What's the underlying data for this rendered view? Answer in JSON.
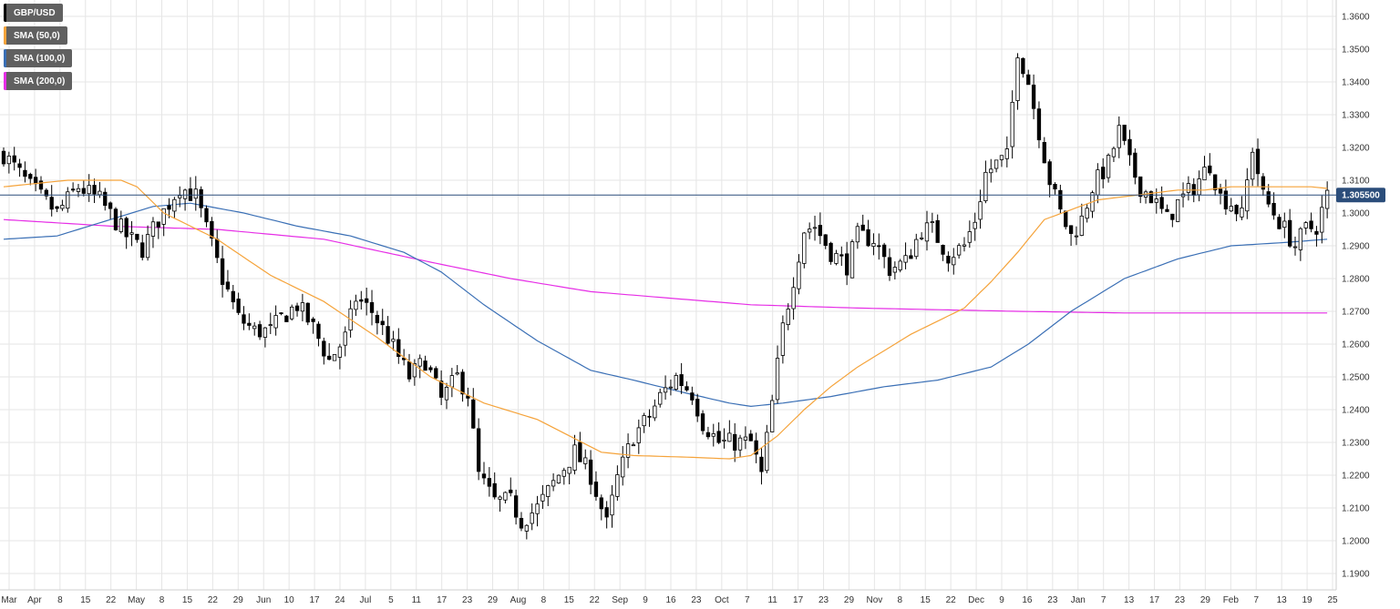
{
  "chart_data": {
    "type": "candlestick",
    "title": "GBP/USD",
    "ylim": [
      1.185,
      1.365
    ],
    "y_ticks": [
      "1.1900",
      "1.2000",
      "1.2100",
      "1.2200",
      "1.2300",
      "1.2400",
      "1.2500",
      "1.2600",
      "1.2700",
      "1.2800",
      "1.2900",
      "1.3000",
      "1.3100",
      "1.3200",
      "1.3300",
      "1.3400",
      "1.3500",
      "1.3600"
    ],
    "x_tick_labels": [
      "Mar",
      "Apr",
      "8",
      "15",
      "22",
      "May",
      "8",
      "15",
      "22",
      "29",
      "Jun",
      "10",
      "17",
      "24",
      "Jul",
      "5",
      "11",
      "17",
      "23",
      "29",
      "Aug",
      "8",
      "15",
      "22",
      "Sep",
      "9",
      "16",
      "23",
      "Oct",
      "7",
      "11",
      "17",
      "23",
      "29",
      "Nov",
      "8",
      "15",
      "22",
      "Dec",
      "9",
      "16",
      "23",
      "Jan",
      "7",
      "13",
      "17",
      "23",
      "29",
      "Feb",
      "7",
      "13",
      "19",
      "25"
    ],
    "current_price": 1.3055,
    "current_price_label": "1.305500",
    "colors": {
      "up_candle": "#ffffff",
      "down_candle": "#000000",
      "sma50": "#f5a33a",
      "sma100": "#3a6fb5",
      "sma200": "#e62ee6",
      "price_line": "#2b4d7a",
      "price_tag": "#2b4d7a",
      "grid": "#e6e6e6"
    },
    "legend": [
      {
        "name": "GBP/USD",
        "color": "#000000"
      },
      {
        "name": "SMA (50,0)",
        "color": "#f5a33a"
      },
      {
        "name": "SMA (100,0)",
        "color": "#3a6fb5"
      },
      {
        "name": "SMA (200,0)",
        "color": "#e62ee6"
      }
    ],
    "close_path": [
      [
        0,
        1.318
      ],
      [
        5,
        1.308
      ],
      [
        10,
        1.3
      ],
      [
        14,
        1.308
      ],
      [
        18,
        1.304
      ],
      [
        23,
        1.293
      ],
      [
        26,
        1.289
      ],
      [
        29,
        1.298
      ],
      [
        33,
        1.308
      ],
      [
        36,
        1.305
      ],
      [
        38,
        1.295
      ],
      [
        41,
        1.28
      ],
      [
        44,
        1.268
      ],
      [
        47,
        1.264
      ],
      [
        50,
        1.264
      ],
      [
        52,
        1.268
      ],
      [
        55,
        1.272
      ],
      [
        58,
        1.265
      ],
      [
        61,
        1.255
      ],
      [
        64,
        1.262
      ],
      [
        66,
        1.274
      ],
      [
        69,
        1.27
      ],
      [
        72,
        1.262
      ],
      [
        76,
        1.25
      ],
      [
        79,
        1.255
      ],
      [
        82,
        1.243
      ],
      [
        85,
        1.25
      ],
      [
        87,
        1.245
      ],
      [
        89,
        1.22
      ],
      [
        92,
        1.212
      ],
      [
        95,
        1.212
      ],
      [
        97,
        1.206
      ],
      [
        100,
        1.21
      ],
      [
        104,
        1.22
      ],
      [
        107,
        1.227
      ],
      [
        110,
        1.22
      ],
      [
        113,
        1.205
      ],
      [
        115,
        1.219
      ],
      [
        118,
        1.232
      ],
      [
        121,
        1.238
      ],
      [
        123,
        1.244
      ],
      [
        126,
        1.25
      ],
      [
        129,
        1.245
      ],
      [
        131,
        1.236
      ],
      [
        134,
        1.23
      ],
      [
        137,
        1.23
      ],
      [
        140,
        1.23
      ],
      [
        142,
        1.22
      ],
      [
        144,
        1.242
      ],
      [
        146,
        1.265
      ],
      [
        148,
        1.28
      ],
      [
        150,
        1.295
      ],
      [
        152,
        1.296
      ],
      [
        155,
        1.288
      ],
      [
        158,
        1.284
      ],
      [
        160,
        1.293
      ],
      [
        163,
        1.292
      ],
      [
        166,
        1.283
      ],
      [
        169,
        1.285
      ],
      [
        172,
        1.295
      ],
      [
        174,
        1.295
      ],
      [
        177,
        1.287
      ],
      [
        180,
        1.29
      ],
      [
        182,
        1.298
      ],
      [
        184,
        1.312
      ],
      [
        186,
        1.315
      ],
      [
        188,
        1.317
      ],
      [
        190,
        1.35
      ],
      [
        192,
        1.34
      ],
      [
        194,
        1.325
      ],
      [
        196,
        1.31
      ],
      [
        198,
        1.3
      ],
      [
        200,
        1.293
      ],
      [
        202,
        1.298
      ],
      [
        204,
        1.308
      ],
      [
        207,
        1.315
      ],
      [
        209,
        1.325
      ],
      [
        211,
        1.315
      ],
      [
        213,
        1.308
      ],
      [
        215,
        1.305
      ],
      [
        218,
        1.298
      ],
      [
        220,
        1.303
      ],
      [
        223,
        1.308
      ],
      [
        226,
        1.315
      ],
      [
        228,
        1.305
      ],
      [
        230,
        1.303
      ],
      [
        232,
        1.299
      ],
      [
        234,
        1.32
      ],
      [
        236,
        1.305
      ],
      [
        238,
        1.3
      ],
      [
        240,
        1.295
      ],
      [
        242,
        1.29
      ],
      [
        244,
        1.295
      ],
      [
        246,
        1.296
      ],
      [
        248,
        1.3055
      ]
    ],
    "sma50_path": [
      [
        0,
        1.308
      ],
      [
        12,
        1.31
      ],
      [
        22,
        1.31
      ],
      [
        25,
        1.308
      ],
      [
        30,
        1.3
      ],
      [
        40,
        1.292
      ],
      [
        50,
        1.281
      ],
      [
        60,
        1.273
      ],
      [
        70,
        1.262
      ],
      [
        80,
        1.25
      ],
      [
        90,
        1.242
      ],
      [
        100,
        1.237
      ],
      [
        106,
        1.232
      ],
      [
        112,
        1.227
      ],
      [
        118,
        1.226
      ],
      [
        128,
        1.2255
      ],
      [
        136,
        1.225
      ],
      [
        140,
        1.226
      ],
      [
        145,
        1.232
      ],
      [
        150,
        1.24
      ],
      [
        155,
        1.247
      ],
      [
        160,
        1.253
      ],
      [
        165,
        1.258
      ],
      [
        170,
        1.263
      ],
      [
        175,
        1.267
      ],
      [
        180,
        1.271
      ],
      [
        185,
        1.279
      ],
      [
        190,
        1.288
      ],
      [
        195,
        1.298
      ],
      [
        200,
        1.301
      ],
      [
        205,
        1.304
      ],
      [
        210,
        1.305
      ],
      [
        215,
        1.306
      ],
      [
        220,
        1.307
      ],
      [
        225,
        1.307
      ],
      [
        230,
        1.308
      ],
      [
        235,
        1.308
      ],
      [
        240,
        1.308
      ],
      [
        245,
        1.308
      ],
      [
        248,
        1.3075
      ]
    ],
    "sma100_path": [
      [
        0,
        1.292
      ],
      [
        10,
        1.293
      ],
      [
        20,
        1.298
      ],
      [
        28,
        1.302
      ],
      [
        35,
        1.303
      ],
      [
        45,
        1.3
      ],
      [
        55,
        1.296
      ],
      [
        65,
        1.293
      ],
      [
        75,
        1.288
      ],
      [
        82,
        1.282
      ],
      [
        90,
        1.272
      ],
      [
        100,
        1.261
      ],
      [
        110,
        1.252
      ],
      [
        118,
        1.249
      ],
      [
        128,
        1.245
      ],
      [
        136,
        1.242
      ],
      [
        140,
        1.241
      ],
      [
        146,
        1.242
      ],
      [
        155,
        1.244
      ],
      [
        165,
        1.247
      ],
      [
        175,
        1.249
      ],
      [
        185,
        1.253
      ],
      [
        192,
        1.26
      ],
      [
        200,
        1.27
      ],
      [
        210,
        1.28
      ],
      [
        220,
        1.286
      ],
      [
        230,
        1.29
      ],
      [
        240,
        1.291
      ],
      [
        248,
        1.292
      ]
    ],
    "sma200_path": [
      [
        0,
        1.298
      ],
      [
        20,
        1.296
      ],
      [
        40,
        1.295
      ],
      [
        60,
        1.292
      ],
      [
        80,
        1.285
      ],
      [
        95,
        1.28
      ],
      [
        110,
        1.276
      ],
      [
        125,
        1.274
      ],
      [
        140,
        1.272
      ],
      [
        160,
        1.271
      ],
      [
        175,
        1.2705
      ],
      [
        190,
        1.27
      ],
      [
        210,
        1.2695
      ],
      [
        230,
        1.2695
      ],
      [
        248,
        1.2695
      ]
    ]
  }
}
